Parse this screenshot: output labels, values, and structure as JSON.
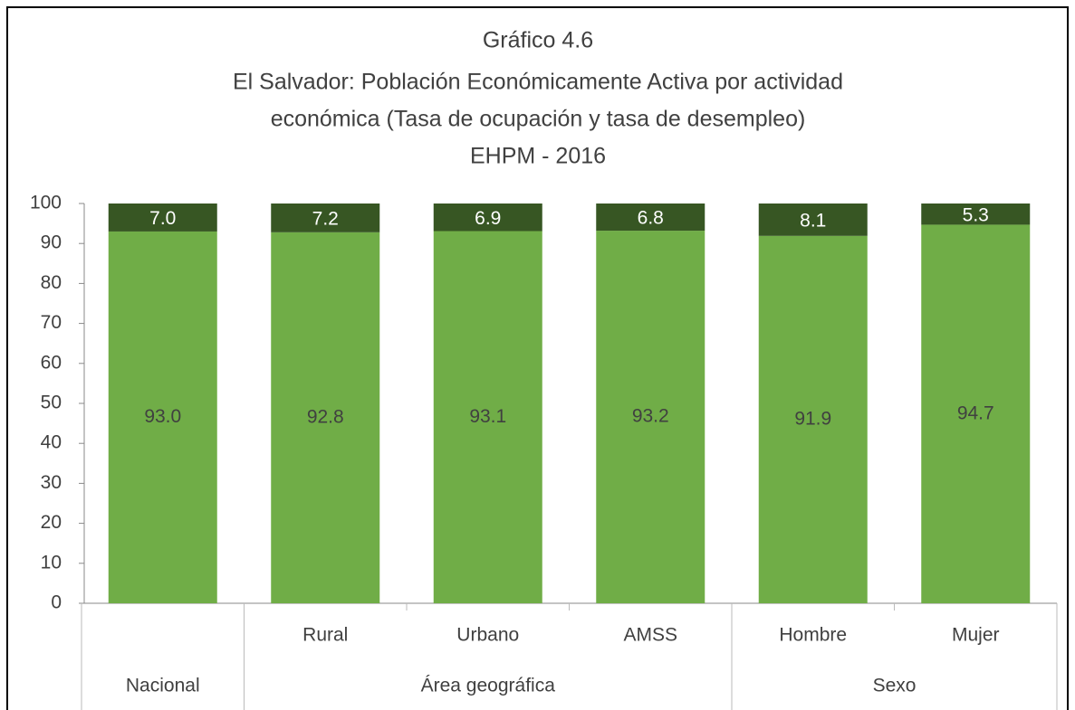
{
  "chart_data": {
    "type": "stacked_bar",
    "title": [
      "Gráfico 4.6",
      "El Salvador: Población Económicamente Activa por actividad",
      "económica (Tasa de ocupación y tasa de desempleo)",
      "EHPM - 2016"
    ],
    "categories": [
      null,
      "Rural",
      "Urbano",
      "AMSS",
      "Hombre",
      "Mujer"
    ],
    "category_groups": [
      "Nacional",
      "Área geográfica",
      "Área geográfica",
      "Área geográfica",
      "Sexo",
      "Sexo"
    ],
    "series": [
      {
        "color": "#70ad47",
        "values": [
          93.0,
          92.8,
          93.1,
          93.2,
          91.9,
          94.7
        ],
        "value_labels": [
          "93.0",
          "92.8",
          "93.1",
          "93.2",
          "91.9",
          "94.7"
        ]
      },
      {
        "color": "#375623",
        "values": [
          7.0,
          7.2,
          6.9,
          6.8,
          8.1,
          5.3
        ],
        "value_labels": [
          "7.0",
          "7.2",
          "6.9",
          "6.8",
          "8.1",
          "5.3"
        ]
      }
    ],
    "ylim": [
      0,
      100
    ],
    "yticks": [
      0,
      10,
      20,
      30,
      40,
      50,
      60,
      70,
      80,
      90,
      100
    ],
    "grid": false
  }
}
